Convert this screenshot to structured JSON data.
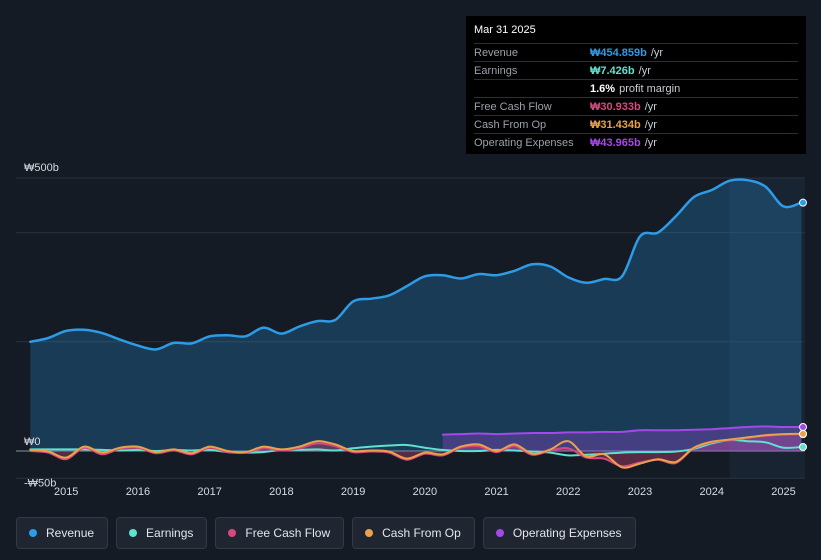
{
  "tooltip": {
    "date": "Mar 31 2025",
    "rows": [
      {
        "label": "Revenue",
        "value": "₩454.859b",
        "suffix": " /yr",
        "color": "#2d9be6"
      },
      {
        "label": "Earnings",
        "value": "₩7.426b",
        "suffix": " /yr",
        "color": "#5fe1cf"
      },
      {
        "label": "",
        "value": "1.6%",
        "suffix": " profit margin",
        "color": "#ffffff"
      },
      {
        "label": "Free Cash Flow",
        "value": "₩30.933b",
        "suffix": " /yr",
        "color": "#d8487e"
      },
      {
        "label": "Cash From Op",
        "value": "₩31.434b",
        "suffix": " /yr",
        "color": "#e8a34a"
      },
      {
        "label": "Operating Expenses",
        "value": "₩43.965b",
        "suffix": " /yr",
        "color": "#a349e8"
      }
    ]
  },
  "legend": [
    {
      "label": "Revenue",
      "color": "#2d9be6"
    },
    {
      "label": "Earnings",
      "color": "#5fe1cf"
    },
    {
      "label": "Free Cash Flow",
      "color": "#d8487e"
    },
    {
      "label": "Cash From Op",
      "color": "#e8a34a"
    },
    {
      "label": "Operating Expenses",
      "color": "#a349e8"
    }
  ],
  "chart_data": {
    "type": "area",
    "title": "",
    "xlabel": "",
    "ylabel": "",
    "currency": "₩",
    "ylim": [
      -50,
      500
    ],
    "xlim": [
      2014.3,
      2025.3
    ],
    "y_ticks": [
      {
        "value": 500,
        "label": "₩500b"
      },
      {
        "value": 0,
        "label": "₩0"
      },
      {
        "value": -50,
        "label": "-₩50b"
      }
    ],
    "x_ticks": [
      {
        "value": 2015,
        "label": "2015"
      },
      {
        "value": 2016,
        "label": "2016"
      },
      {
        "value": 2017,
        "label": "2017"
      },
      {
        "value": 2018,
        "label": "2018"
      },
      {
        "value": 2019,
        "label": "2019"
      },
      {
        "value": 2020,
        "label": "2020"
      },
      {
        "value": 2021,
        "label": "2021"
      },
      {
        "value": 2022,
        "label": "2022"
      },
      {
        "value": 2023,
        "label": "2023"
      },
      {
        "value": 2024,
        "label": "2024"
      },
      {
        "value": 2025,
        "label": "2025"
      }
    ],
    "highlight_start": 2024.25,
    "series": [
      {
        "name": "Revenue",
        "color": "#2d9be6",
        "fill": true,
        "x": [
          2014.5,
          2014.75,
          2015.0,
          2015.25,
          2015.5,
          2015.75,
          2016.0,
          2016.25,
          2016.5,
          2016.75,
          2017.0,
          2017.25,
          2017.5,
          2017.75,
          2018.0,
          2018.25,
          2018.5,
          2018.75,
          2019.0,
          2019.25,
          2019.5,
          2019.75,
          2020.0,
          2020.25,
          2020.5,
          2020.75,
          2021.0,
          2021.25,
          2021.5,
          2021.75,
          2022.0,
          2022.25,
          2022.5,
          2022.75,
          2023.0,
          2023.25,
          2023.5,
          2023.75,
          2024.0,
          2024.25,
          2024.5,
          2024.75,
          2025.0,
          2025.25
        ],
        "values": [
          200,
          207,
          220,
          222,
          216,
          204,
          193,
          186,
          198,
          197,
          210,
          212,
          210,
          226,
          215,
          228,
          238,
          240,
          274,
          279,
          285,
          302,
          320,
          322,
          316,
          324,
          322,
          330,
          342,
          338,
          318,
          308,
          315,
          320,
          393,
          400,
          430,
          465,
          478,
          495,
          496,
          484,
          448,
          454.859
        ]
      },
      {
        "name": "Earnings",
        "color": "#5fe1cf",
        "fill": false,
        "x": [
          2014.5,
          2014.75,
          2015.0,
          2015.25,
          2015.5,
          2015.75,
          2016.0,
          2016.25,
          2016.5,
          2016.75,
          2017.0,
          2017.25,
          2017.5,
          2017.75,
          2018.0,
          2018.25,
          2018.5,
          2018.75,
          2019.0,
          2019.25,
          2019.5,
          2019.75,
          2020.0,
          2020.25,
          2020.5,
          2020.75,
          2021.0,
          2021.25,
          2021.5,
          2021.75,
          2022.0,
          2022.25,
          2022.5,
          2022.75,
          2023.0,
          2023.25,
          2023.5,
          2023.75,
          2024.0,
          2024.25,
          2024.5,
          2024.75,
          2025.0,
          2025.25
        ],
        "values": [
          3,
          3,
          3,
          3,
          2,
          1,
          2,
          0,
          2,
          1,
          2,
          -2,
          -3,
          -2,
          2,
          2,
          3,
          1,
          5,
          8,
          10,
          11,
          6,
          2,
          0,
          0,
          2,
          1,
          -1,
          -3,
          -8,
          -7,
          -5,
          -3,
          -2,
          -2,
          -1,
          4,
          14,
          20,
          18,
          16,
          6,
          7.426
        ]
      },
      {
        "name": "Free Cash Flow",
        "color": "#d8487e",
        "fill": true,
        "x": [
          2014.5,
          2014.75,
          2015.0,
          2015.25,
          2015.5,
          2015.75,
          2016.0,
          2016.25,
          2016.5,
          2016.75,
          2017.0,
          2017.25,
          2017.5,
          2017.75,
          2018.0,
          2018.25,
          2018.5,
          2018.75,
          2019.0,
          2019.25,
          2019.5,
          2019.75,
          2020.0,
          2020.25,
          2020.5,
          2020.75,
          2021.0,
          2021.25,
          2021.5,
          2021.75,
          2022.0,
          2022.25,
          2022.5,
          2022.75,
          2023.0,
          2023.25,
          2023.5,
          2023.75,
          2024.0,
          2024.25,
          2024.5,
          2024.75,
          2025.0,
          2025.25
        ],
        "values": [
          0,
          -3,
          -15,
          6,
          -6,
          4,
          6,
          -4,
          1,
          -6,
          6,
          -2,
          -3,
          5,
          1,
          5,
          14,
          9,
          -2,
          -1,
          -3,
          -16,
          -5,
          -8,
          6,
          9,
          -2,
          9,
          -7,
          1,
          5,
          -12,
          -14,
          -28,
          -21,
          -16,
          -22,
          5,
          16,
          20,
          24,
          28,
          30,
          30.933
        ]
      },
      {
        "name": "Cash From Op",
        "color": "#e8a34a",
        "fill": false,
        "x": [
          2014.5,
          2014.75,
          2015.0,
          2015.25,
          2015.5,
          2015.75,
          2016.0,
          2016.25,
          2016.5,
          2016.75,
          2017.0,
          2017.25,
          2017.5,
          2017.75,
          2018.0,
          2018.25,
          2018.5,
          2018.75,
          2019.0,
          2019.25,
          2019.5,
          2019.75,
          2020.0,
          2020.25,
          2020.5,
          2020.75,
          2021.0,
          2021.25,
          2021.5,
          2021.75,
          2022.0,
          2022.25,
          2022.5,
          2022.75,
          2023.0,
          2023.25,
          2023.5,
          2023.75,
          2024.0,
          2024.25,
          2024.5,
          2024.75,
          2025.0,
          2025.25
        ],
        "values": [
          2,
          -1,
          -12,
          8,
          -3,
          6,
          8,
          -2,
          3,
          -4,
          8,
          0,
          -2,
          8,
          3,
          8,
          18,
          12,
          0,
          1,
          -1,
          -14,
          -3,
          -6,
          8,
          12,
          0,
          12,
          -5,
          3,
          18,
          -10,
          -6,
          -30,
          -23,
          -15,
          -20,
          6,
          17,
          21,
          25,
          29,
          31,
          31.434
        ]
      },
      {
        "name": "Operating Expenses",
        "color": "#a349e8",
        "fill": true,
        "x": [
          2020.25,
          2020.5,
          2020.75,
          2021.0,
          2021.25,
          2021.5,
          2021.75,
          2022.0,
          2022.25,
          2022.5,
          2022.75,
          2023.0,
          2023.25,
          2023.5,
          2023.75,
          2024.0,
          2024.25,
          2024.5,
          2024.75,
          2025.0,
          2025.25
        ],
        "values": [
          30,
          31,
          32,
          31,
          32,
          33,
          33,
          34,
          34,
          35,
          35,
          38,
          38,
          38,
          39,
          40,
          42,
          44,
          45,
          44,
          43.965
        ]
      }
    ]
  }
}
